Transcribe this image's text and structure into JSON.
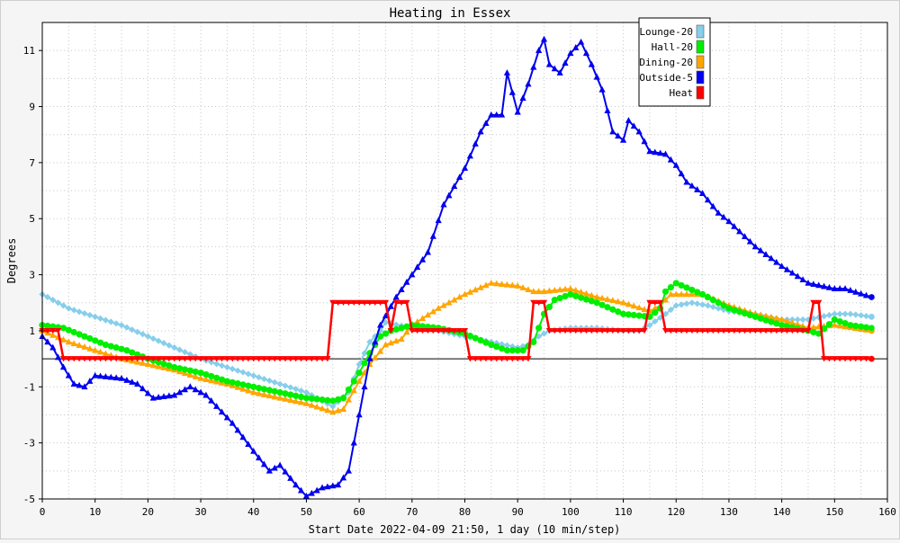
{
  "chart_data": {
    "type": "line",
    "title": "Heating in Essex",
    "xlabel": "Start Date 2022-04-09 21:50, 1 day (10 min/step)",
    "ylabel": "Degrees",
    "xlim": [
      0,
      160
    ],
    "ylim": [
      -5,
      12
    ],
    "xticks": [
      "0",
      "10",
      "20",
      "30",
      "40",
      "50",
      "60",
      "70",
      "80",
      "90",
      "100",
      "110",
      "120",
      "130",
      "140",
      "150",
      "160"
    ],
    "yticks": [
      "-5",
      "-3",
      "-1",
      "1",
      "3",
      "5",
      "7",
      "9",
      "11"
    ],
    "grid": true,
    "legend_position": "top-right",
    "series": [
      {
        "name": "Lounge-20",
        "color": "#87ceeb",
        "marker": "diamond",
        "points": [
          [
            0,
            2.3
          ],
          [
            5,
            1.8
          ],
          [
            10,
            1.5
          ],
          [
            15,
            1.2
          ],
          [
            20,
            0.8
          ],
          [
            25,
            0.4
          ],
          [
            30,
            0.0
          ],
          [
            35,
            -0.3
          ],
          [
            40,
            -0.6
          ],
          [
            45,
            -0.9
          ],
          [
            50,
            -1.2
          ],
          [
            55,
            -1.7
          ],
          [
            58,
            -1.2
          ],
          [
            60,
            -0.2
          ],
          [
            62,
            0.6
          ],
          [
            64,
            1.0
          ],
          [
            65,
            1.3
          ],
          [
            70,
            1.1
          ],
          [
            75,
            1.0
          ],
          [
            80,
            0.8
          ],
          [
            85,
            0.6
          ],
          [
            90,
            0.4
          ],
          [
            92,
            0.5
          ],
          [
            94,
            0.8
          ],
          [
            96,
            1.0
          ],
          [
            100,
            1.1
          ],
          [
            105,
            1.1
          ],
          [
            110,
            1.0
          ],
          [
            113,
            1.0
          ],
          [
            115,
            1.2
          ],
          [
            118,
            1.6
          ],
          [
            120,
            1.9
          ],
          [
            123,
            2.0
          ],
          [
            126,
            1.9
          ],
          [
            130,
            1.7
          ],
          [
            135,
            1.6
          ],
          [
            140,
            1.4
          ],
          [
            145,
            1.4
          ],
          [
            150,
            1.6
          ],
          [
            153,
            1.6
          ],
          [
            157,
            1.5
          ]
        ]
      },
      {
        "name": "Hall-20",
        "color": "#00ee00",
        "marker": "circle",
        "points": [
          [
            0,
            1.2
          ],
          [
            4,
            1.1
          ],
          [
            8,
            0.8
          ],
          [
            12,
            0.5
          ],
          [
            16,
            0.3
          ],
          [
            20,
            0.0
          ],
          [
            25,
            -0.3
          ],
          [
            30,
            -0.5
          ],
          [
            35,
            -0.8
          ],
          [
            40,
            -1.0
          ],
          [
            45,
            -1.2
          ],
          [
            50,
            -1.4
          ],
          [
            55,
            -1.5
          ],
          [
            57,
            -1.4
          ],
          [
            60,
            -0.5
          ],
          [
            62,
            0.2
          ],
          [
            64,
            0.8
          ],
          [
            66,
            1.0
          ],
          [
            70,
            1.2
          ],
          [
            75,
            1.1
          ],
          [
            80,
            0.9
          ],
          [
            85,
            0.5
          ],
          [
            88,
            0.3
          ],
          [
            91,
            0.3
          ],
          [
            93,
            0.6
          ],
          [
            95,
            1.6
          ],
          [
            97,
            2.1
          ],
          [
            100,
            2.3
          ],
          [
            105,
            2.0
          ],
          [
            110,
            1.6
          ],
          [
            115,
            1.5
          ],
          [
            117,
            1.8
          ],
          [
            118,
            2.4
          ],
          [
            120,
            2.7
          ],
          [
            125,
            2.3
          ],
          [
            130,
            1.8
          ],
          [
            135,
            1.5
          ],
          [
            140,
            1.2
          ],
          [
            145,
            1.0
          ],
          [
            147,
            0.9
          ],
          [
            150,
            1.4
          ],
          [
            153,
            1.2
          ],
          [
            157,
            1.1
          ]
        ]
      },
      {
        "name": "Dining-20",
        "color": "#ffa500",
        "marker": "triangle",
        "points": [
          [
            0,
            1.0
          ],
          [
            5,
            0.6
          ],
          [
            10,
            0.3
          ],
          [
            15,
            0.0
          ],
          [
            20,
            -0.2
          ],
          [
            25,
            -0.4
          ],
          [
            30,
            -0.7
          ],
          [
            35,
            -0.9
          ],
          [
            40,
            -1.2
          ],
          [
            45,
            -1.4
          ],
          [
            50,
            -1.6
          ],
          [
            55,
            -1.9
          ],
          [
            57,
            -1.8
          ],
          [
            60,
            -0.8
          ],
          [
            62,
            -0.2
          ],
          [
            65,
            0.5
          ],
          [
            68,
            0.7
          ],
          [
            70,
            1.2
          ],
          [
            75,
            1.8
          ],
          [
            80,
            2.3
          ],
          [
            85,
            2.7
          ],
          [
            90,
            2.6
          ],
          [
            93,
            2.4
          ],
          [
            95,
            2.4
          ],
          [
            100,
            2.5
          ],
          [
            105,
            2.2
          ],
          [
            110,
            2.0
          ],
          [
            115,
            1.7
          ],
          [
            117,
            1.9
          ],
          [
            119,
            2.3
          ],
          [
            125,
            2.3
          ],
          [
            130,
            1.9
          ],
          [
            135,
            1.6
          ],
          [
            140,
            1.4
          ],
          [
            145,
            1.1
          ],
          [
            150,
            1.2
          ],
          [
            157,
            1.0
          ]
        ]
      },
      {
        "name": "Outside-5",
        "color": "#0000ee",
        "marker": "triangle",
        "points": [
          [
            0,
            0.8
          ],
          [
            2,
            0.4
          ],
          [
            4,
            -0.3
          ],
          [
            6,
            -0.9
          ],
          [
            8,
            -1.0
          ],
          [
            10,
            -0.6
          ],
          [
            15,
            -0.7
          ],
          [
            18,
            -0.9
          ],
          [
            21,
            -1.4
          ],
          [
            25,
            -1.3
          ],
          [
            28,
            -1.0
          ],
          [
            31,
            -1.3
          ],
          [
            34,
            -1.9
          ],
          [
            36,
            -2.3
          ],
          [
            40,
            -3.3
          ],
          [
            43,
            -4.0
          ],
          [
            45,
            -3.8
          ],
          [
            48,
            -4.5
          ],
          [
            50,
            -4.9
          ],
          [
            53,
            -4.6
          ],
          [
            56,
            -4.5
          ],
          [
            58,
            -4.0
          ],
          [
            60,
            -2.0
          ],
          [
            62,
            0.0
          ],
          [
            64,
            1.2
          ],
          [
            67,
            2.2
          ],
          [
            70,
            3.0
          ],
          [
            73,
            3.8
          ],
          [
            76,
            5.5
          ],
          [
            80,
            6.8
          ],
          [
            83,
            8.1
          ],
          [
            85,
            8.7
          ],
          [
            87,
            8.7
          ],
          [
            88,
            10.2
          ],
          [
            90,
            8.8
          ],
          [
            92,
            9.8
          ],
          [
            94,
            11.0
          ],
          [
            95,
            11.4
          ],
          [
            96,
            10.5
          ],
          [
            98,
            10.2
          ],
          [
            100,
            10.9
          ],
          [
            102,
            11.3
          ],
          [
            104,
            10.5
          ],
          [
            106,
            9.6
          ],
          [
            108,
            8.1
          ],
          [
            110,
            7.8
          ],
          [
            111,
            8.5
          ],
          [
            113,
            8.1
          ],
          [
            115,
            7.4
          ],
          [
            118,
            7.3
          ],
          [
            120,
            6.9
          ],
          [
            122,
            6.3
          ],
          [
            125,
            5.9
          ],
          [
            128,
            5.2
          ],
          [
            130,
            4.9
          ],
          [
            135,
            4.0
          ],
          [
            140,
            3.3
          ],
          [
            145,
            2.7
          ],
          [
            150,
            2.5
          ],
          [
            152,
            2.5
          ],
          [
            157,
            2.2
          ]
        ]
      },
      {
        "name": "Heat",
        "color": "#ff0000",
        "marker": "triangle-down",
        "points": [
          [
            0,
            1
          ],
          [
            3,
            1
          ],
          [
            4,
            0
          ],
          [
            54,
            0
          ],
          [
            55,
            2
          ],
          [
            65,
            2
          ],
          [
            66,
            1
          ],
          [
            67,
            2
          ],
          [
            69,
            2
          ],
          [
            70,
            1
          ],
          [
            80,
            1
          ],
          [
            81,
            0
          ],
          [
            92,
            0
          ],
          [
            93,
            2
          ],
          [
            95,
            2
          ],
          [
            96,
            1
          ],
          [
            114,
            1
          ],
          [
            115,
            2
          ],
          [
            117,
            2
          ],
          [
            118,
            1
          ],
          [
            145,
            1
          ],
          [
            146,
            2
          ],
          [
            147,
            2
          ],
          [
            148,
            0
          ],
          [
            157,
            0
          ]
        ]
      }
    ]
  }
}
